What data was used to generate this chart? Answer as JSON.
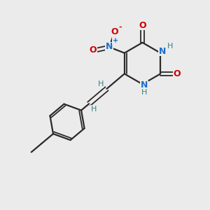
{
  "background_color": "#ebebeb",
  "bond_color": "#2a2a2a",
  "atom_colors": {
    "N": "#1a6fcc",
    "O": "#cc0000",
    "H": "#3a8080",
    "C": "#2a2a2a"
  },
  "figsize": [
    3.0,
    3.0
  ],
  "dpi": 100
}
